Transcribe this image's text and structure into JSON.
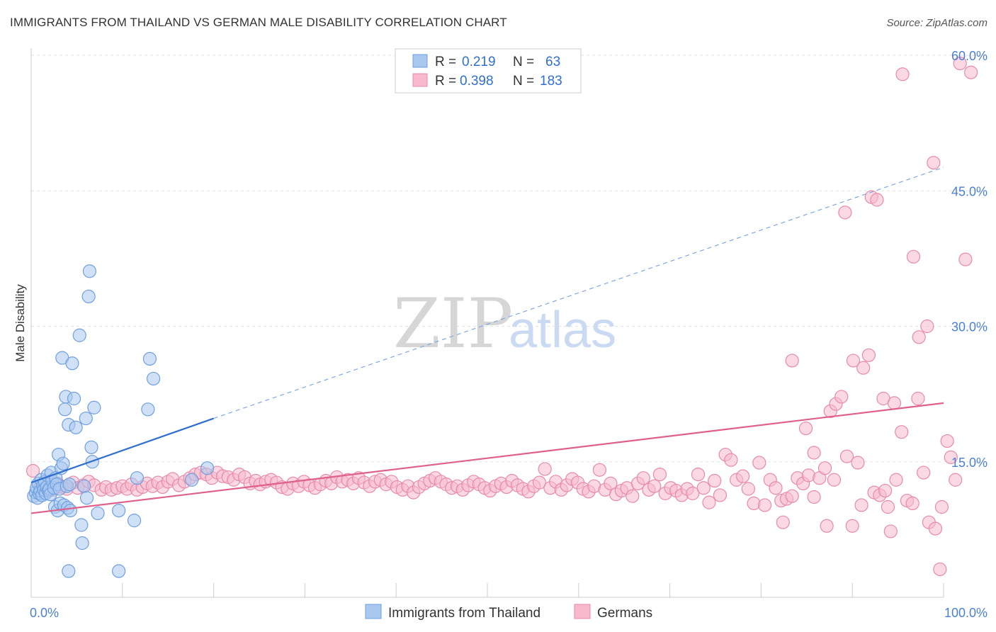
{
  "title": "IMMIGRANTS FROM THAILAND VS GERMAN MALE DISABILITY CORRELATION CHART",
  "source": "Source: ZipAtlas.com",
  "watermark": {
    "zip": "ZIP",
    "atlas": "atlas"
  },
  "legend": {
    "rows": [
      {
        "r_label": "R =",
        "r_value": "0.219",
        "n_label": "N =",
        "n_value": "63",
        "color": "#a9c8f0",
        "stroke": "#6e9fdf"
      },
      {
        "r_label": "R =",
        "r_value": "0.398",
        "n_label": "N =",
        "n_value": "183",
        "color": "#f8b9cd",
        "stroke": "#e88aa8"
      }
    ]
  },
  "bottom_legend": [
    {
      "label": "Immigrants from Thailand",
      "color": "#a9c8f0",
      "stroke": "#6e9fdf"
    },
    {
      "label": "Germans",
      "color": "#f8b9cd",
      "stroke": "#e88aa8"
    }
  ],
  "chart_data": {
    "type": "scatter",
    "xlabel": "",
    "ylabel": "Male Disability",
    "xlim": [
      0,
      100
    ],
    "ylim": [
      0,
      60
    ],
    "x_tick_labels": [
      {
        "value": 0,
        "label": "0.0%"
      },
      {
        "value": 100,
        "label": "100.0%"
      }
    ],
    "y_tick_labels": [
      {
        "value": 15,
        "label": "15.0%"
      },
      {
        "value": 30,
        "label": "30.0%"
      },
      {
        "value": 45,
        "label": "45.0%"
      },
      {
        "value": 60,
        "label": "60.0%"
      }
    ],
    "grid": true,
    "series": [
      {
        "name": "Immigrants from Thailand",
        "color": "#a9c8f0",
        "stroke": "#6e9fdf",
        "trend": {
          "x0": 0,
          "y0": 12.7,
          "x1": 20,
          "y1": 19.8,
          "dash_to_x": 100,
          "dash_to_y": 47.6,
          "color": "#2f6fd0"
        },
        "points": [
          [
            0.3,
            11.2
          ],
          [
            0.5,
            11.6
          ],
          [
            0.6,
            12.1
          ],
          [
            0.7,
            11.0
          ],
          [
            0.8,
            12.6
          ],
          [
            0.9,
            11.5
          ],
          [
            1.0,
            11.8
          ],
          [
            1.1,
            13.0
          ],
          [
            1.2,
            11.3
          ],
          [
            1.3,
            12.4
          ],
          [
            1.4,
            11.9
          ],
          [
            1.5,
            12.8
          ],
          [
            1.6,
            11.5
          ],
          [
            1.7,
            12.2
          ],
          [
            1.8,
            13.5
          ],
          [
            1.9,
            11.8
          ],
          [
            2.0,
            12.0
          ],
          [
            2.1,
            11.4
          ],
          [
            2.2,
            13.8
          ],
          [
            2.3,
            12.9
          ],
          [
            2.5,
            12.1
          ],
          [
            2.6,
            10.0
          ],
          [
            2.7,
            13.2
          ],
          [
            2.8,
            12.5
          ],
          [
            2.9,
            9.6
          ],
          [
            3.0,
            15.8
          ],
          [
            3.1,
            12.0
          ],
          [
            3.2,
            10.4
          ],
          [
            3.3,
            14.3
          ],
          [
            3.4,
            26.5
          ],
          [
            3.5,
            14.8
          ],
          [
            3.6,
            10.2
          ],
          [
            3.7,
            20.8
          ],
          [
            3.8,
            22.2
          ],
          [
            3.9,
            12.3
          ],
          [
            4.0,
            9.9
          ],
          [
            4.1,
            19.1
          ],
          [
            4.2,
            12.5
          ],
          [
            4.3,
            9.6
          ],
          [
            4.5,
            25.9
          ],
          [
            4.7,
            22.0
          ],
          [
            4.9,
            18.8
          ],
          [
            5.3,
            29.0
          ],
          [
            5.5,
            8.0
          ],
          [
            5.6,
            6.0
          ],
          [
            5.8,
            12.3
          ],
          [
            6.0,
            19.8
          ],
          [
            6.1,
            11.0
          ],
          [
            6.3,
            33.3
          ],
          [
            6.4,
            36.1
          ],
          [
            6.6,
            16.6
          ],
          [
            6.7,
            15.0
          ],
          [
            6.9,
            21.0
          ],
          [
            7.3,
            9.3
          ],
          [
            4.1,
            2.9
          ],
          [
            9.6,
            2.9
          ],
          [
            9.6,
            9.6
          ],
          [
            11.3,
            8.5
          ],
          [
            11.6,
            13.2
          ],
          [
            12.8,
            20.8
          ],
          [
            13.0,
            26.4
          ],
          [
            13.4,
            24.2
          ],
          [
            17.6,
            13.0
          ],
          [
            19.3,
            14.3
          ]
        ]
      },
      {
        "name": "Germans",
        "color": "#f8b9cd",
        "stroke": "#e88aa8",
        "trend": {
          "x0": 0,
          "y0": 9.3,
          "x1": 100,
          "y1": 21.5,
          "color": "#e0608c"
        },
        "points": [
          [
            0.2,
            14.0
          ],
          [
            1.0,
            12.2
          ],
          [
            1.6,
            12.7
          ],
          [
            2.4,
            11.9
          ],
          [
            2.9,
            12.6
          ],
          [
            3.4,
            12.2
          ],
          [
            3.9,
            12.0
          ],
          [
            4.6,
            12.7
          ],
          [
            5.1,
            12.1
          ],
          [
            5.7,
            12.4
          ],
          [
            6.3,
            12.8
          ],
          [
            6.9,
            12.4
          ],
          [
            7.7,
            11.9
          ],
          [
            8.2,
            12.2
          ],
          [
            8.8,
            11.9
          ],
          [
            9.4,
            12.1
          ],
          [
            10.0,
            12.3
          ],
          [
            10.5,
            12.0
          ],
          [
            11.0,
            12.5
          ],
          [
            11.6,
            11.9
          ],
          [
            12.2,
            12.2
          ],
          [
            12.7,
            12.6
          ],
          [
            13.3,
            12.3
          ],
          [
            13.9,
            12.7
          ],
          [
            14.4,
            12.2
          ],
          [
            15.0,
            12.8
          ],
          [
            15.5,
            13.1
          ],
          [
            16.2,
            12.4
          ],
          [
            16.8,
            12.8
          ],
          [
            17.4,
            13.2
          ],
          [
            18.0,
            13.6
          ],
          [
            18.6,
            13.8
          ],
          [
            19.2,
            13.6
          ],
          [
            19.8,
            13.2
          ],
          [
            20.4,
            13.8
          ],
          [
            21.0,
            13.4
          ],
          [
            21.6,
            13.3
          ],
          [
            22.2,
            13.0
          ],
          [
            22.8,
            13.6
          ],
          [
            23.4,
            13.3
          ],
          [
            24.0,
            12.6
          ],
          [
            24.6,
            12.9
          ],
          [
            25.1,
            12.5
          ],
          [
            25.7,
            12.8
          ],
          [
            26.3,
            13.0
          ],
          [
            26.9,
            12.7
          ],
          [
            27.5,
            12.2
          ],
          [
            28.1,
            12.0
          ],
          [
            28.7,
            12.6
          ],
          [
            29.3,
            12.3
          ],
          [
            29.9,
            12.8
          ],
          [
            30.5,
            12.4
          ],
          [
            31.1,
            12.1
          ],
          [
            31.7,
            12.5
          ],
          [
            32.3,
            12.9
          ],
          [
            32.9,
            12.6
          ],
          [
            33.5,
            13.3
          ],
          [
            34.1,
            12.8
          ],
          [
            34.7,
            13.0
          ],
          [
            35.3,
            12.6
          ],
          [
            35.9,
            13.2
          ],
          [
            36.5,
            12.7
          ],
          [
            37.1,
            12.3
          ],
          [
            37.7,
            12.8
          ],
          [
            38.3,
            13.0
          ],
          [
            38.9,
            12.5
          ],
          [
            39.5,
            12.8
          ],
          [
            40.1,
            12.2
          ],
          [
            40.7,
            11.9
          ],
          [
            41.3,
            12.3
          ],
          [
            41.9,
            11.6
          ],
          [
            42.5,
            12.2
          ],
          [
            43.1,
            12.6
          ],
          [
            43.7,
            12.9
          ],
          [
            44.3,
            13.2
          ],
          [
            44.9,
            12.8
          ],
          [
            45.5,
            12.5
          ],
          [
            46.1,
            12.1
          ],
          [
            46.7,
            12.3
          ],
          [
            47.3,
            11.9
          ],
          [
            47.9,
            12.4
          ],
          [
            48.5,
            12.8
          ],
          [
            49.1,
            12.5
          ],
          [
            49.7,
            12.1
          ],
          [
            50.3,
            11.8
          ],
          [
            50.9,
            12.3
          ],
          [
            51.5,
            12.6
          ],
          [
            52.1,
            12.2
          ],
          [
            52.7,
            12.9
          ],
          [
            53.3,
            12.4
          ],
          [
            53.9,
            12.0
          ],
          [
            54.5,
            11.7
          ],
          [
            55.1,
            12.3
          ],
          [
            55.7,
            12.7
          ],
          [
            56.3,
            14.2
          ],
          [
            56.9,
            12.1
          ],
          [
            57.5,
            12.8
          ],
          [
            58.1,
            11.9
          ],
          [
            58.7,
            12.4
          ],
          [
            59.3,
            13.1
          ],
          [
            59.9,
            12.7
          ],
          [
            60.5,
            12.0
          ],
          [
            61.1,
            11.7
          ],
          [
            61.7,
            12.3
          ],
          [
            62.3,
            14.1
          ],
          [
            62.9,
            11.9
          ],
          [
            63.5,
            12.6
          ],
          [
            64.1,
            11.4
          ],
          [
            64.7,
            11.8
          ],
          [
            65.3,
            12.1
          ],
          [
            65.9,
            11.2
          ],
          [
            66.5,
            12.6
          ],
          [
            67.1,
            13.2
          ],
          [
            67.7,
            11.9
          ],
          [
            68.3,
            12.3
          ],
          [
            68.9,
            13.6
          ],
          [
            69.5,
            11.5
          ],
          [
            70.1,
            12.1
          ],
          [
            70.7,
            11.8
          ],
          [
            71.3,
            11.3
          ],
          [
            71.9,
            12.0
          ],
          [
            72.5,
            11.5
          ],
          [
            73.1,
            13.6
          ],
          [
            73.7,
            12.1
          ],
          [
            74.3,
            10.5
          ],
          [
            74.9,
            12.9
          ],
          [
            75.5,
            11.3
          ],
          [
            76.1,
            15.8
          ],
          [
            76.7,
            15.2
          ],
          [
            77.3,
            13.0
          ],
          [
            78.0,
            13.4
          ],
          [
            78.6,
            12.0
          ],
          [
            79.2,
            10.4
          ],
          [
            79.8,
            14.9
          ],
          [
            80.4,
            10.2
          ],
          [
            81.0,
            13.0
          ],
          [
            81.6,
            12.1
          ],
          [
            82.2,
            10.7
          ],
          [
            82.8,
            10.9
          ],
          [
            83.4,
            11.2
          ],
          [
            84.0,
            13.2
          ],
          [
            84.6,
            12.6
          ],
          [
            85.2,
            13.5
          ],
          [
            85.8,
            16.0
          ],
          [
            86.4,
            13.2
          ],
          [
            87.0,
            14.3
          ],
          [
            87.6,
            20.6
          ],
          [
            88.2,
            21.4
          ],
          [
            88.8,
            22.2
          ],
          [
            89.4,
            15.6
          ],
          [
            90.0,
            7.9
          ],
          [
            90.6,
            14.9
          ],
          [
            91.2,
            25.4
          ],
          [
            91.8,
            26.8
          ],
          [
            92.4,
            11.6
          ],
          [
            93.0,
            11.3
          ],
          [
            93.6,
            11.8
          ],
          [
            94.2,
            7.3
          ],
          [
            94.8,
            13.0
          ],
          [
            95.4,
            18.3
          ],
          [
            96.0,
            10.7
          ],
          [
            96.6,
            10.4
          ],
          [
            97.2,
            22.0
          ],
          [
            97.8,
            13.8
          ],
          [
            98.4,
            8.3
          ],
          [
            83.4,
            26.2
          ],
          [
            84.9,
            18.7
          ],
          [
            87.2,
            7.9
          ],
          [
            89.2,
            42.6
          ],
          [
            90.1,
            26.2
          ],
          [
            92.1,
            44.3
          ],
          [
            92.7,
            44.0
          ],
          [
            93.4,
            22.0
          ],
          [
            94.6,
            21.5
          ],
          [
            95.5,
            57.9
          ],
          [
            96.7,
            37.7
          ],
          [
            97.3,
            28.8
          ],
          [
            98.2,
            30.0
          ],
          [
            98.9,
            48.1
          ],
          [
            99.1,
            7.6
          ],
          [
            99.6,
            3.1
          ],
          [
            99.8,
            10.0
          ],
          [
            100.4,
            17.3
          ],
          [
            100.8,
            15.5
          ],
          [
            101.3,
            13.0
          ],
          [
            101.8,
            59.1
          ],
          [
            102.4,
            37.4
          ],
          [
            103.0,
            58.1
          ],
          [
            82.4,
            8.3
          ],
          [
            85.8,
            11.1
          ],
          [
            88.0,
            13.0
          ],
          [
            91.0,
            10.2
          ],
          [
            93.9,
            10.0
          ]
        ]
      }
    ]
  }
}
